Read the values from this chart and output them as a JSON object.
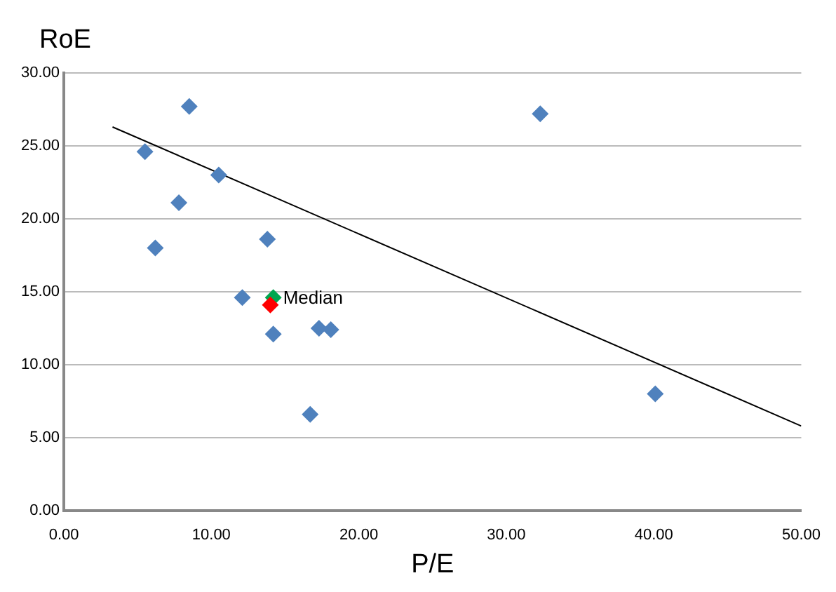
{
  "chart_data": {
    "type": "scatter",
    "xlabel": "P/E",
    "ylabel": "RoE",
    "series": [
      {
        "color": "#4f81bd",
        "x": [
          8.5,
          5.5,
          10.5,
          7.8,
          6.2,
          13.8,
          12.1,
          14.2,
          17.3,
          18.1,
          16.7,
          32.3,
          40.1
        ],
        "values": [
          27.7,
          24.6,
          23.0,
          21.1,
          18.0,
          18.6,
          14.6,
          12.1,
          12.5,
          12.4,
          6.6,
          27.2,
          8.0
        ]
      },
      {
        "color": "#ff0000",
        "x": [
          14.0
        ],
        "values": [
          14.1
        ]
      },
      {
        "name": "Median",
        "color": "#00a650",
        "x": [
          14.2
        ],
        "values": [
          14.6
        ]
      },
      {
        "type": "line",
        "color": "#000000",
        "marker": "none",
        "x": [
          3.3,
          50
        ],
        "values": [
          26.3,
          5.8
        ]
      }
    ],
    "marker": "diamond",
    "legend": false,
    "grid": "y",
    "xlim": [
      0,
      50
    ],
    "xticks": [
      {
        "value": 0,
        "label": "0.00"
      },
      {
        "value": 10,
        "label": "10.00"
      },
      {
        "value": 20,
        "label": "20.00"
      },
      {
        "value": 30,
        "label": "30.00"
      },
      {
        "value": 40,
        "label": "40.00"
      },
      {
        "value": 50,
        "label": "50.00"
      }
    ],
    "ylim": [
      0,
      30
    ],
    "yticks": [
      {
        "value": 0,
        "label": "0.00"
      },
      {
        "value": 5,
        "label": "5.00"
      },
      {
        "value": 10,
        "label": "10.00"
      },
      {
        "value": 15,
        "label": "15.00"
      },
      {
        "value": 20,
        "label": "20.00"
      },
      {
        "value": 25,
        "label": "25.00"
      },
      {
        "value": 30,
        "label": "30.00"
      }
    ]
  }
}
